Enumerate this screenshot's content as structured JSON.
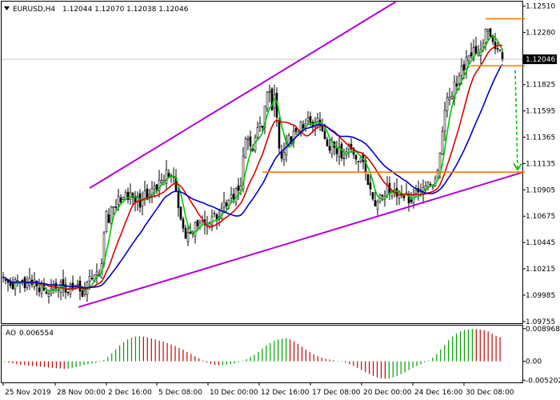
{
  "header": {
    "symbol": "EURUSD,H4",
    "ohlc": "1.12044 1.12070 1.12038 1.12046",
    "triangle_icon": "triangle-down-icon"
  },
  "ao_header": {
    "label": "AO",
    "value": "0.006554"
  },
  "colors": {
    "bull_candle": "#ffffff",
    "bear_candle": "#000000",
    "ma_fast": "#00c800",
    "ma_mid": "#dc0000",
    "ma_slow": "#0000c8",
    "channel": "#b400dc",
    "levels": "#ff7800",
    "target_arrow": "#00c800",
    "ao_up": "#00a000",
    "ao_down": "#c80000",
    "price_tag_bg": "#000000"
  },
  "chart_data": [
    {
      "type": "candlestick",
      "title": "EURUSD,H4",
      "y_ticks": [
        "1.12510",
        "1.12280",
        "1.12046",
        "1.11825",
        "1.11595",
        "1.11365",
        "1.11135",
        "1.10905",
        "1.10675",
        "1.10445",
        "1.10215",
        "1.09985",
        "1.09755"
      ],
      "y_tick_values": [
        1.1251,
        1.1228,
        1.12046,
        1.11825,
        1.11595,
        1.11365,
        1.11135,
        1.10905,
        1.10675,
        1.10445,
        1.10215,
        1.09985,
        1.09755
      ],
      "current_price": "1.12046",
      "x_ticks": [
        "25 Nov 2019",
        "28 Nov 00:00",
        "2 Dec 16:00",
        "5 Dec 08:00",
        "10 Dec 00:00",
        "12 Dec 16:00",
        "17 Dec 08:00",
        "20 Dec 00:00",
        "24 Dec 16:00",
        "30 Dec 08:00"
      ],
      "ylim": [
        1.0974,
        1.1255
      ],
      "close_path": [
        [
          0,
          1.1016
        ],
        [
          5,
          1.1012
        ],
        [
          10,
          1.1008
        ],
        [
          14,
          1.1004
        ],
        [
          18,
          1.1015
        ],
        [
          22,
          1.1008
        ],
        [
          26,
          1.1011
        ],
        [
          30,
          1.1003
        ],
        [
          34,
          1.1015
        ],
        [
          38,
          1.1008
        ],
        [
          42,
          1.1013
        ],
        [
          46,
          1.1
        ],
        [
          50,
          1.1006
        ],
        [
          54,
          1.1002
        ],
        [
          58,
          1.0998
        ],
        [
          62,
          1.1004
        ],
        [
          66,
          1.1008
        ],
        [
          70,
          1.1001
        ],
        [
          74,
          1.101
        ],
        [
          78,
          1.1004
        ],
        [
          82,
          1.0998
        ],
        [
          86,
          1.1008
        ],
        [
          90,
          1.1003
        ],
        [
          94,
          1.101
        ],
        [
          98,
          1.1002
        ],
        [
          102,
          1.0996
        ],
        [
          106,
          1.1008
        ],
        [
          110,
          1.1015
        ],
        [
          114,
          1.1012
        ],
        [
          118,
          1.102
        ],
        [
          122,
          1.1015
        ],
        [
          126,
          1.103
        ],
        [
          130,
          1.1075
        ],
        [
          134,
          1.1062
        ],
        [
          138,
          1.108
        ],
        [
          142,
          1.1072
        ],
        [
          146,
          1.1085
        ],
        [
          150,
          1.1078
        ],
        [
          154,
          1.109
        ],
        [
          158,
          1.1082
        ],
        [
          162,
          1.109
        ],
        [
          166,
          1.1078
        ],
        [
          170,
          1.1085
        ],
        [
          174,
          1.1072
        ],
        [
          178,
          1.1092
        ],
        [
          182,
          1.1082
        ],
        [
          186,
          1.1088
        ],
        [
          190,
          1.1095
        ],
        [
          194,
          1.109
        ],
        [
          198,
          1.1102
        ],
        [
          202,
          1.1096
        ],
        [
          206,
          1.1108
        ],
        [
          210,
          1.11
        ],
        [
          214,
          1.1106
        ],
        [
          218,
          1.109
        ],
        [
          222,
          1.107
        ],
        [
          226,
          1.106
        ],
        [
          230,
          1.1048
        ],
        [
          234,
          1.1055
        ],
        [
          238,
          1.105
        ],
        [
          242,
          1.1062
        ],
        [
          246,
          1.1058
        ],
        [
          250,
          1.1065
        ],
        [
          254,
          1.106
        ],
        [
          258,
          1.1058
        ],
        [
          262,
          1.1066
        ],
        [
          266,
          1.107
        ],
        [
          270,
          1.1062
        ],
        [
          274,
          1.1072
        ],
        [
          278,
          1.108
        ],
        [
          282,
          1.1075
        ],
        [
          286,
          1.1088
        ],
        [
          290,
          1.1082
        ],
        [
          294,
          1.1095
        ],
        [
          298,
          1.1085
        ],
        [
          302,
          1.112
        ],
        [
          306,
          1.114
        ],
        [
          310,
          1.113
        ],
        [
          314,
          1.1125
        ],
        [
          318,
          1.114
        ],
        [
          322,
          1.115
        ],
        [
          326,
          1.1145
        ],
        [
          330,
          1.117
        ],
        [
          334,
          1.1182
        ],
        [
          338,
          1.116
        ],
        [
          342,
          1.1178
        ],
        [
          346,
          1.113
        ],
        [
          350,
          1.1118
        ],
        [
          354,
          1.1125
        ],
        [
          358,
          1.114
        ],
        [
          362,
          1.1132
        ],
        [
          366,
          1.1145
        ],
        [
          370,
          1.1138
        ],
        [
          374,
          1.115
        ],
        [
          378,
          1.1142
        ],
        [
          382,
          1.1155
        ],
        [
          386,
          1.1148
        ],
        [
          390,
          1.1145
        ],
        [
          394,
          1.1155
        ],
        [
          398,
          1.1148
        ],
        [
          402,
          1.114
        ],
        [
          406,
          1.113
        ],
        [
          410,
          1.1125
        ],
        [
          414,
          1.1135
        ],
        [
          418,
          1.112
        ],
        [
          422,
          1.1128
        ],
        [
          426,
          1.1115
        ],
        [
          430,
          1.1122
        ],
        [
          434,
          1.113
        ],
        [
          438,
          1.1125
        ],
        [
          442,
          1.1118
        ],
        [
          446,
          1.1115
        ],
        [
          450,
          1.112
        ],
        [
          454,
          1.111
        ],
        [
          458,
          1.1095
        ],
        [
          462,
          1.109
        ],
        [
          466,
          1.1075
        ],
        [
          470,
          1.108
        ],
        [
          474,
          1.1088
        ],
        [
          478,
          1.1082
        ],
        [
          482,
          1.1094
        ],
        [
          486,
          1.1086
        ],
        [
          490,
          1.1092
        ],
        [
          494,
          1.1085
        ],
        [
          498,
          1.109
        ],
        [
          502,
          1.1082
        ],
        [
          506,
          1.1088
        ],
        [
          510,
          1.1076
        ],
        [
          514,
          1.1084
        ],
        [
          518,
          1.109
        ],
        [
          522,
          1.1088
        ],
        [
          526,
          1.1092
        ],
        [
          530,
          1.1094
        ],
        [
          534,
          1.1098
        ],
        [
          538,
          1.1092
        ],
        [
          542,
          1.11
        ],
        [
          546,
          1.111
        ],
        [
          550,
          1.1135
        ],
        [
          554,
          1.116
        ],
        [
          558,
          1.1175
        ],
        [
          562,
          1.1168
        ],
        [
          566,
          1.1185
        ],
        [
          570,
          1.118
        ],
        [
          574,
          1.12
        ],
        [
          578,
          1.1195
        ],
        [
          582,
          1.121
        ],
        [
          586,
          1.1205
        ],
        [
          590,
          1.1215
        ],
        [
          594,
          1.1208
        ],
        [
          598,
          1.1212
        ],
        [
          602,
          1.1218
        ],
        [
          606,
          1.1235
        ],
        [
          610,
          1.1226
        ],
        [
          614,
          1.122
        ],
        [
          618,
          1.1212
        ],
        [
          622,
          1.1215
        ],
        [
          626,
          1.1205
        ]
      ],
      "overlays": {
        "channel_upper": [
          [
            110,
            1.1092
          ],
          [
            493,
            1.1255
          ]
        ],
        "channel_lower": [
          [
            96,
            1.0988
          ],
          [
            652,
            1.1106
          ]
        ],
        "resistance_top": [
          [
            605,
            1.124
          ],
          [
            654,
            1.124
          ]
        ],
        "level_upper": [
          [
            586,
            1.1199
          ],
          [
            654,
            1.1199
          ]
        ],
        "level_support": [
          [
            326,
            1.1106
          ],
          [
            654,
            1.1106
          ]
        ],
        "target_arrow": [
          [
            642,
            1.1195
          ],
          [
            645,
            1.1108
          ]
        ]
      }
    },
    {
      "type": "bar",
      "title": "AO",
      "value_label": "0.006554",
      "y_ticks": [
        "0.008968",
        "0.00",
        "-0.005202"
      ],
      "y_tick_values": [
        0.008968,
        0.0,
        -0.005202
      ],
      "ylim": [
        -0.0058,
        0.0098
      ],
      "values": [
        -0.0002,
        -0.0004,
        -0.0006,
        -0.0008,
        -0.001,
        -0.0011,
        -0.0012,
        -0.0013,
        -0.0014,
        -0.0015,
        -0.0016,
        -0.0017,
        -0.0018,
        -0.0019,
        -0.002,
        -0.0021,
        -0.002,
        -0.0018,
        -0.0016,
        -0.0013,
        -0.001,
        -0.0008,
        -0.0006,
        -0.0004,
        -0.0002,
        0.0004,
        0.0012,
        0.0022,
        0.0033,
        0.0044,
        0.0053,
        0.006,
        0.0065,
        0.0068,
        0.0069,
        0.0068,
        0.0066,
        0.0063,
        0.006,
        0.0057,
        0.0054,
        0.005,
        0.0046,
        0.0042,
        0.0037,
        0.0032,
        0.0026,
        0.002,
        0.0014,
        0.0008,
        0.0002,
        -0.0003,
        -0.0007,
        -0.001,
        -0.0011,
        -0.0011,
        -0.001,
        -0.0008,
        -0.0006,
        -0.0003,
        0.0001,
        0.0006,
        0.0012,
        0.0018,
        0.0026,
        0.0035,
        0.0043,
        0.005,
        0.0056,
        0.006,
        0.0062,
        0.0063,
        0.006,
        0.0055,
        0.0048,
        0.004,
        0.0032,
        0.0025,
        0.0019,
        0.0014,
        0.001,
        0.0007,
        0.0005,
        0.0003,
        0.0001,
        -0.0001,
        -0.0004,
        -0.0008,
        -0.0013,
        -0.0018,
        -0.0024,
        -0.003,
        -0.0035,
        -0.004,
        -0.0044,
        -0.0047,
        -0.0048,
        -0.0047,
        -0.0044,
        -0.004,
        -0.0035,
        -0.003,
        -0.0024,
        -0.0018,
        -0.0013,
        -0.0008,
        -0.0003,
        0.0002,
        0.001,
        0.002,
        0.0032,
        0.0045,
        0.0058,
        0.0068,
        0.0076,
        0.0082,
        0.0086,
        0.0088,
        0.0089,
        0.0088,
        0.0087,
        0.0085,
        0.0082,
        0.0076,
        0.007,
        0.0066
      ]
    }
  ]
}
